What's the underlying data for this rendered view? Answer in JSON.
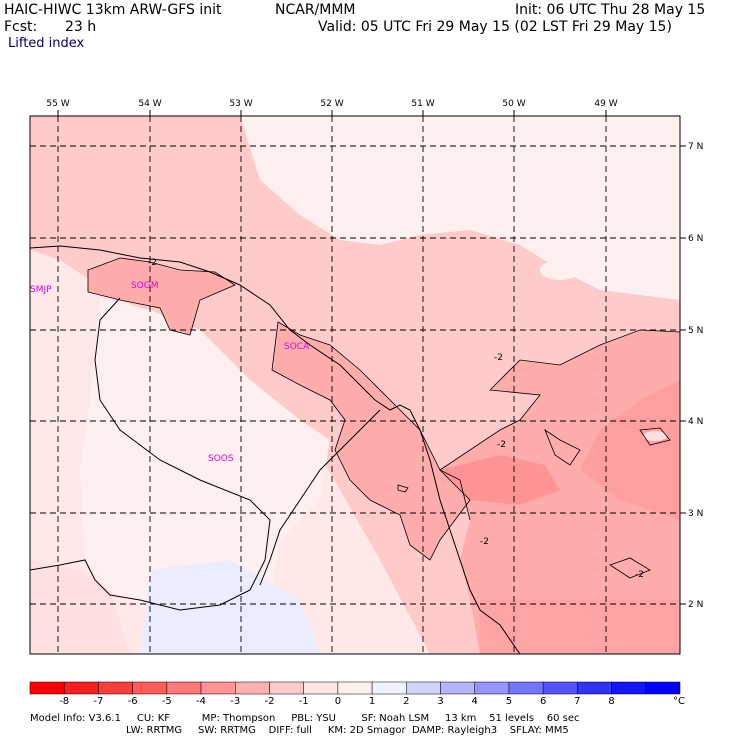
{
  "header": {
    "model": "HAIC-HIWC 13km ARW-GFS init",
    "org": "NCAR/MMM",
    "init": "Init: 06 UTC Thu 28 May 15",
    "fcst_label": "Fcst:",
    "fcst_value": "23 h",
    "valid": "Valid: 05 UTC Fri 29 May 15 (02 LST Fri 29 May 15)",
    "field": "Lifted index"
  },
  "map": {
    "lon_labels": [
      "55 W",
      "54 W",
      "53 W",
      "52 W",
      "51 W",
      "50 W",
      "49 W"
    ],
    "lat_labels": [
      "7 N",
      "6 N",
      "5 N",
      "4 N",
      "3 N",
      "2 N"
    ],
    "stations": [
      "SMJP",
      "SOGM",
      "SOCA",
      "SOOS"
    ],
    "contour_labels": [
      "-2",
      "-2",
      "-2",
      "-2",
      "-2"
    ]
  },
  "colorbar": {
    "colors": [
      "#ff0000",
      "#ff1e1e",
      "#ff3c3c",
      "#ff5a5a",
      "#ff7878",
      "#ff9494",
      "#ffb0b0",
      "#ffcaca",
      "#ffe4e4",
      "#fff0f0",
      "#f0f0ff",
      "#d4d4ff",
      "#b4b4ff",
      "#9494ff",
      "#7474ff",
      "#5454ff",
      "#3434ff",
      "#1414ff",
      "#0000ff"
    ],
    "labels": [
      "-8",
      "-7",
      "-6",
      "-5",
      "-4",
      "-3",
      "-2",
      "-1",
      "0",
      "1",
      "2",
      "3",
      "4",
      "5",
      "6",
      "7",
      "8"
    ],
    "unit": "°C"
  },
  "footer": {
    "line1": "Model Info: V3.6.1     CU: KF          MP: Thompson     PBL: YSU        SF: Noah LSM     13 km    51 levels    60 sec",
    "line2": "LW: RRTMG     SW: RRTMG    DIFF: full     KM: 2D Smagor  DAMP: Rayleigh3    SFLAY: MM5"
  }
}
